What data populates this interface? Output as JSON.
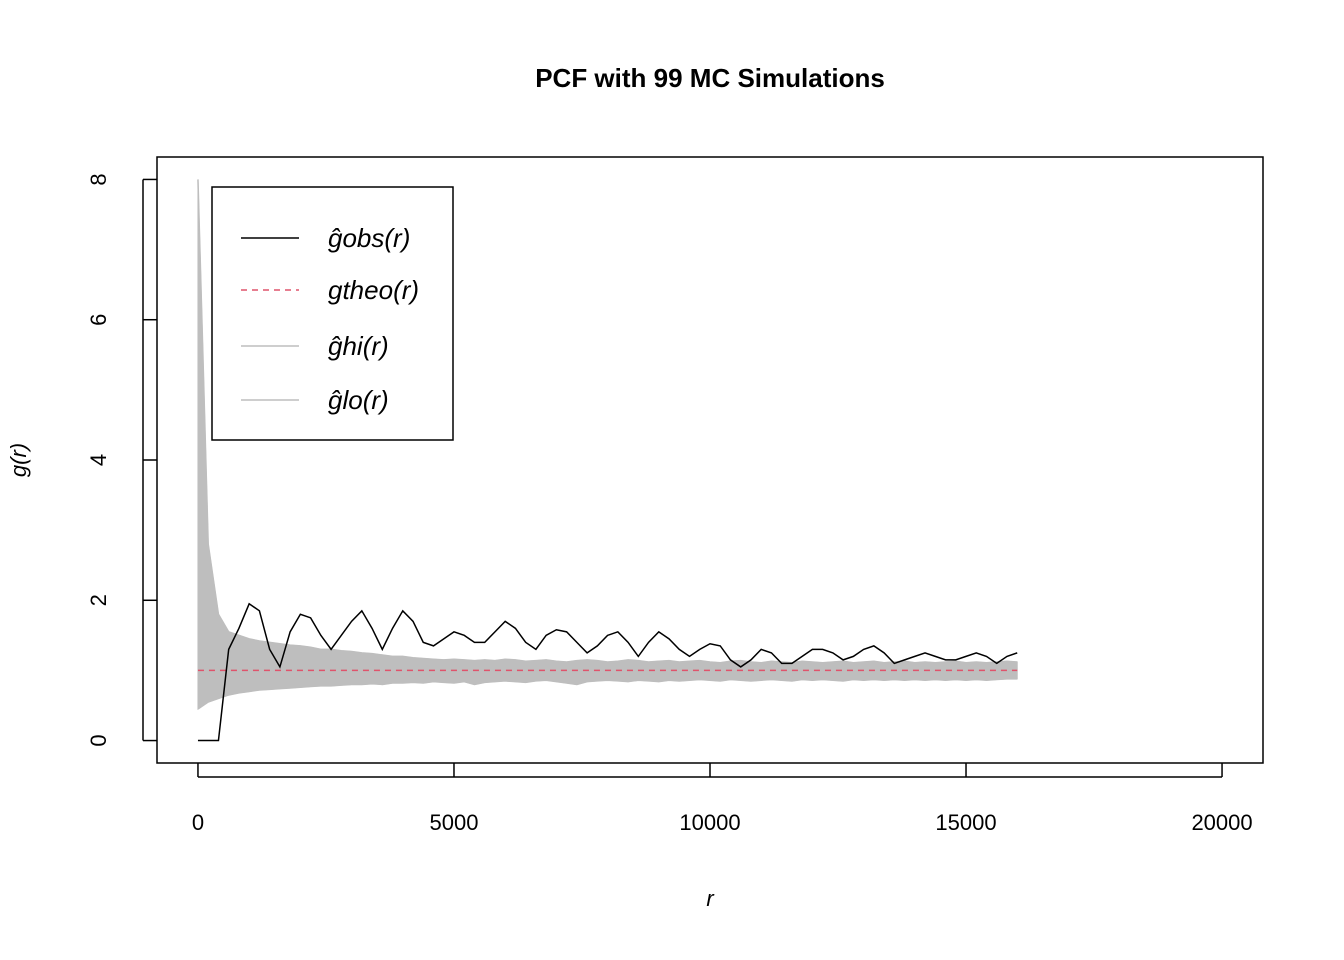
{
  "chart_data": {
    "type": "line",
    "title": "PCF with 99 MC Simulations",
    "x_label": "r",
    "y_label": "g(r)",
    "x": [
      0,
      200,
      400,
      600,
      800,
      1000,
      1200,
      1400,
      1600,
      1800,
      2000,
      2200,
      2400,
      2600,
      2800,
      3000,
      3200,
      3400,
      3600,
      3800,
      4000,
      4200,
      4400,
      4600,
      4800,
      5000,
      5200,
      5400,
      5600,
      5800,
      6000,
      6200,
      6400,
      6600,
      6800,
      7000,
      7200,
      7400,
      7600,
      7800,
      8000,
      8200,
      8400,
      8600,
      8800,
      9000,
      9200,
      9400,
      9600,
      9800,
      10000,
      10200,
      10400,
      10600,
      10800,
      11000,
      11200,
      11400,
      11600,
      11800,
      12000,
      12200,
      12400,
      12600,
      12800,
      13000,
      13200,
      13400,
      13600,
      13800,
      14000,
      14200,
      14400,
      14600,
      14800,
      15000,
      15200,
      15400,
      15600,
      15800,
      16000
    ],
    "series": [
      {
        "name": "ĝobs(r)",
        "color": "#000000",
        "linestyle": "solid",
        "values": [
          0,
          0,
          0,
          1.3,
          1.6,
          1.95,
          1.85,
          1.3,
          1.05,
          1.55,
          1.8,
          1.75,
          1.5,
          1.3,
          1.5,
          1.7,
          1.85,
          1.6,
          1.3,
          1.6,
          1.85,
          1.7,
          1.4,
          1.35,
          1.45,
          1.55,
          1.5,
          1.4,
          1.4,
          1.55,
          1.7,
          1.6,
          1.4,
          1.3,
          1.5,
          1.58,
          1.55,
          1.4,
          1.25,
          1.35,
          1.5,
          1.55,
          1.4,
          1.2,
          1.4,
          1.55,
          1.45,
          1.3,
          1.2,
          1.3,
          1.38,
          1.35,
          1.15,
          1.05,
          1.15,
          1.3,
          1.25,
          1.1,
          1.1,
          1.2,
          1.3,
          1.3,
          1.25,
          1.15,
          1.2,
          1.3,
          1.35,
          1.25,
          1.1,
          1.15,
          1.2,
          1.25,
          1.2,
          1.15,
          1.15,
          1.2,
          1.25,
          1.2,
          1.1,
          1.2,
          1.25
        ]
      },
      {
        "name": "gtheo(r)",
        "color": "#df536b",
        "linestyle": "dashed",
        "values": [
          1,
          1,
          1,
          1,
          1,
          1,
          1,
          1,
          1,
          1,
          1,
          1,
          1,
          1,
          1,
          1,
          1,
          1,
          1,
          1,
          1,
          1,
          1,
          1,
          1,
          1,
          1,
          1,
          1,
          1,
          1,
          1,
          1,
          1,
          1,
          1,
          1,
          1,
          1,
          1,
          1,
          1,
          1,
          1,
          1,
          1,
          1,
          1,
          1,
          1,
          1,
          1,
          1,
          1,
          1,
          1,
          1,
          1,
          1,
          1,
          1,
          1,
          1,
          1,
          1,
          1,
          1,
          1,
          1,
          1,
          1,
          1,
          1,
          1,
          1,
          1,
          1,
          1,
          1,
          1,
          1
        ]
      },
      {
        "name": "ĝhi(r)",
        "color": "#bebebe",
        "linestyle": "solid",
        "values": [
          8.0,
          2.8,
          1.8,
          1.55,
          1.5,
          1.45,
          1.42,
          1.4,
          1.38,
          1.36,
          1.35,
          1.33,
          1.3,
          1.3,
          1.28,
          1.27,
          1.25,
          1.24,
          1.22,
          1.2,
          1.2,
          1.18,
          1.17,
          1.16,
          1.15,
          1.16,
          1.15,
          1.14,
          1.15,
          1.14,
          1.16,
          1.15,
          1.13,
          1.14,
          1.15,
          1.13,
          1.12,
          1.14,
          1.15,
          1.14,
          1.12,
          1.13,
          1.15,
          1.14,
          1.12,
          1.13,
          1.14,
          1.12,
          1.13,
          1.14,
          1.12,
          1.11,
          1.13,
          1.14,
          1.12,
          1.11,
          1.13,
          1.12,
          1.11,
          1.13,
          1.12,
          1.11,
          1.12,
          1.13,
          1.11,
          1.12,
          1.13,
          1.11,
          1.12,
          1.13,
          1.11,
          1.12,
          1.11,
          1.12,
          1.13,
          1.11,
          1.12,
          1.11,
          1.12,
          1.13,
          1.12
        ]
      },
      {
        "name": "ĝlo(r)",
        "color": "#bebebe",
        "linestyle": "solid",
        "values": [
          0.45,
          0.55,
          0.6,
          0.65,
          0.68,
          0.7,
          0.72,
          0.73,
          0.74,
          0.75,
          0.76,
          0.77,
          0.78,
          0.78,
          0.79,
          0.8,
          0.8,
          0.81,
          0.8,
          0.82,
          0.82,
          0.83,
          0.82,
          0.84,
          0.83,
          0.82,
          0.84,
          0.8,
          0.83,
          0.84,
          0.85,
          0.84,
          0.83,
          0.85,
          0.86,
          0.84,
          0.82,
          0.8,
          0.84,
          0.85,
          0.86,
          0.85,
          0.84,
          0.86,
          0.85,
          0.84,
          0.86,
          0.85,
          0.86,
          0.87,
          0.86,
          0.85,
          0.87,
          0.86,
          0.85,
          0.86,
          0.87,
          0.86,
          0.85,
          0.87,
          0.86,
          0.87,
          0.86,
          0.85,
          0.87,
          0.86,
          0.87,
          0.86,
          0.87,
          0.86,
          0.87,
          0.86,
          0.87,
          0.86,
          0.87,
          0.86,
          0.87,
          0.86,
          0.87,
          0.88,
          0.88
        ]
      }
    ],
    "envelope": true,
    "xlim": [
      -800,
      20800
    ],
    "ylim": [
      -0.32,
      8.32
    ],
    "xticks": [
      0,
      5000,
      10000,
      15000,
      20000
    ],
    "yticks": [
      0,
      2,
      4,
      6,
      8
    ],
    "legend": "top-left"
  }
}
